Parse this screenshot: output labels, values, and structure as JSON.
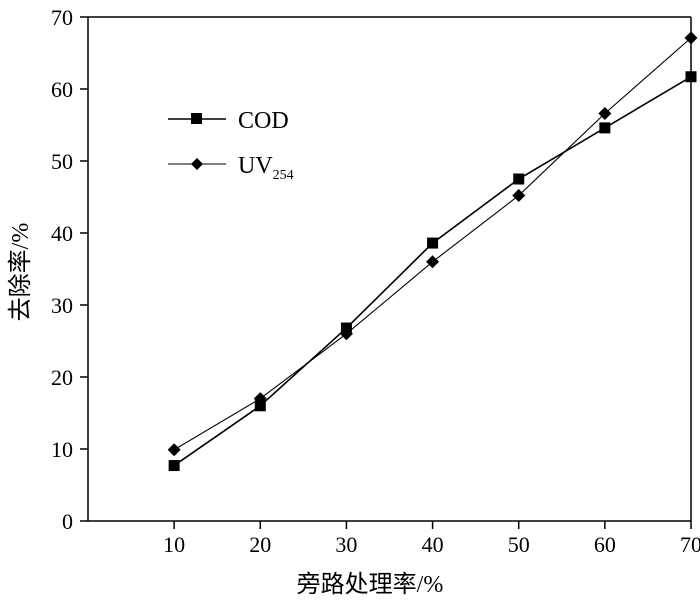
{
  "chart_data": {
    "type": "line",
    "xlabel": "旁路处理率/%",
    "ylabel": "去除率/%",
    "x": [
      10,
      20,
      30,
      40,
      50,
      60,
      70
    ],
    "xlim": [
      0,
      70
    ],
    "ylim": [
      0,
      70
    ],
    "xticks": [
      "10",
      "20",
      "30",
      "40",
      "50",
      "60",
      "70"
    ],
    "yticks": [
      "0",
      "10",
      "20",
      "30",
      "40",
      "50",
      "60",
      "70"
    ],
    "grid": false,
    "legend_position": "top-left",
    "series": [
      {
        "name": "COD",
        "marker": "square",
        "color": "#000000",
        "values": [
          7.7,
          16.0,
          26.8,
          38.6,
          47.5,
          54.6,
          61.7
        ]
      },
      {
        "name": "UV254",
        "name_main": "UV",
        "name_sub": "254",
        "marker": "diamond",
        "color": "#000000",
        "values": [
          9.9,
          17.0,
          26.0,
          36.0,
          45.2,
          56.6,
          67.1
        ]
      }
    ]
  }
}
